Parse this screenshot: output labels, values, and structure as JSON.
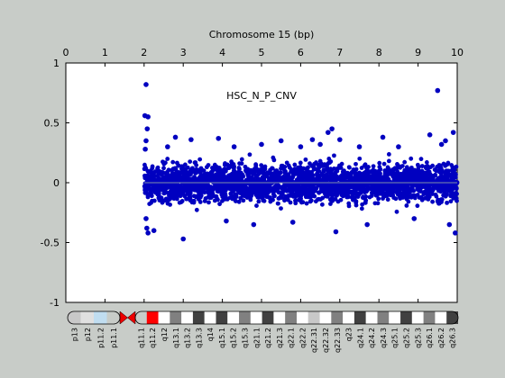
{
  "chart_data": {
    "type": "scatter",
    "title": "Chromosome 15 (bp)",
    "annotation": "HSC_N_P_CNV",
    "xlim": [
      0,
      10
    ],
    "ylim": [
      -1,
      1
    ],
    "x_ticks": [
      "0",
      "1",
      "2",
      "3",
      "4",
      "5",
      "6",
      "7",
      "8",
      "9",
      "10"
    ],
    "y_ticks": [
      "1",
      "0.5",
      "0",
      "-0.5",
      "-1"
    ],
    "y_tick_values": [
      1,
      0.5,
      0,
      -0.5,
      -1
    ],
    "x_tick_values": [
      0,
      1,
      2,
      3,
      4,
      5,
      6,
      7,
      8,
      9,
      10
    ],
    "grid": false,
    "baseline": 0,
    "point_color": "#0000c0",
    "baseline_color": "#8090a8",
    "series": [
      {
        "x_range": [
          2.0,
          10.0
        ],
        "typical_spread": [
          -0.25,
          0.25
        ],
        "points": [
          [
            2.05,
            0.82
          ],
          [
            2.02,
            0.56
          ],
          [
            2.1,
            0.55
          ],
          [
            2.08,
            0.45
          ],
          [
            2.05,
            0.35
          ],
          [
            2.03,
            0.28
          ],
          [
            2.07,
            -0.38
          ],
          [
            2.1,
            -0.42
          ],
          [
            2.25,
            -0.4
          ],
          [
            2.05,
            -0.3
          ],
          [
            3.0,
            -0.47
          ],
          [
            2.8,
            0.38
          ],
          [
            2.6,
            0.3
          ],
          [
            3.2,
            0.36
          ],
          [
            3.9,
            0.37
          ],
          [
            4.3,
            0.3
          ],
          [
            4.8,
            -0.35
          ],
          [
            5.0,
            0.32
          ],
          [
            5.5,
            0.35
          ],
          [
            6.0,
            0.3
          ],
          [
            6.3,
            0.36
          ],
          [
            6.5,
            0.32
          ],
          [
            6.8,
            0.45
          ],
          [
            6.7,
            0.42
          ],
          [
            6.9,
            -0.41
          ],
          [
            7.0,
            0.36
          ],
          [
            7.5,
            0.3
          ],
          [
            7.7,
            -0.35
          ],
          [
            8.1,
            0.38
          ],
          [
            8.5,
            0.3
          ],
          [
            8.9,
            -0.3
          ],
          [
            9.3,
            0.4
          ],
          [
            9.5,
            0.77
          ],
          [
            9.6,
            0.32
          ],
          [
            9.8,
            -0.35
          ],
          [
            9.9,
            0.42
          ],
          [
            9.95,
            -0.42
          ],
          [
            9.7,
            0.35
          ],
          [
            5.8,
            -0.33
          ],
          [
            4.1,
            -0.32
          ]
        ]
      }
    ]
  },
  "ideogram": {
    "bands": [
      "p13",
      "p12",
      "p11.2",
      "p11.1",
      "q11.1",
      "q11.2",
      "q12",
      "q13.1",
      "q13.2",
      "q13.3",
      "q14",
      "q15.1",
      "q15.2",
      "q15.3",
      "q21.1",
      "q21.2",
      "q21.3",
      "q22.1",
      "q22.2",
      "q22.31",
      "q22.32",
      "q22.33",
      "q23",
      "q24.1",
      "q24.2",
      "q24.3",
      "q25.1",
      "q25.2",
      "q25.3",
      "q26.1",
      "q26.2",
      "q26.3"
    ]
  }
}
